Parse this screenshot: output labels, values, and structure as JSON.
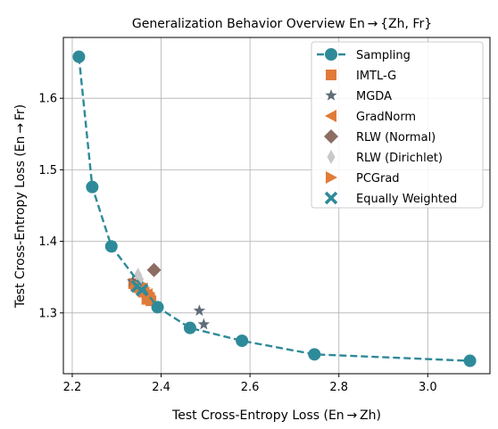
{
  "chart_data": {
    "type": "scatter",
    "title": "Generalization Behavior Overview En → {Zh, Fr}",
    "xlabel": "Test Cross-Entropy Loss (En → Zh)",
    "ylabel": "Test Cross-Entropy Loss (En → Fr)",
    "xlim": [
      2.18,
      3.14
    ],
    "ylim": [
      1.215,
      1.685
    ],
    "xticks": [
      2.2,
      2.4,
      2.6,
      2.8,
      3.0
    ],
    "xtick_labels": [
      "2.2",
      "2.4",
      "2.6",
      "2.8",
      "3.0"
    ],
    "yticks": [
      1.3,
      1.4,
      1.5,
      1.6
    ],
    "ytick_labels": [
      "1.3",
      "1.4",
      "1.5",
      "1.6"
    ],
    "grid": true,
    "legend_position": "top-right",
    "series": [
      {
        "name": "Sampling",
        "marker": "circle",
        "line": "dashed",
        "color": "#2e8a99",
        "points": [
          [
            2.215,
            1.658
          ],
          [
            2.245,
            1.476
          ],
          [
            2.288,
            1.393
          ],
          [
            2.392,
            1.308
          ],
          [
            2.465,
            1.279
          ],
          [
            2.582,
            1.261
          ],
          [
            2.745,
            1.242
          ],
          [
            3.095,
            1.233
          ]
        ]
      },
      {
        "name": "IMTL-G",
        "marker": "square",
        "color": "#e07b39",
        "points": [
          [
            2.338,
            1.341
          ],
          [
            2.353,
            1.335
          ],
          [
            2.362,
            1.329
          ],
          [
            2.372,
            1.322
          ],
          [
            2.377,
            1.317
          ],
          [
            2.368,
            1.319
          ]
        ]
      },
      {
        "name": "MGDA",
        "marker": "star",
        "color": "#5f6d79",
        "points": [
          [
            2.486,
            1.303
          ],
          [
            2.496,
            1.284
          ],
          [
            2.336,
            1.344
          ]
        ]
      },
      {
        "name": "GradNorm",
        "marker": "triangle-left",
        "color": "#e07b39",
        "points": [
          [
            2.358,
            1.334
          ],
          [
            2.369,
            1.326
          ],
          [
            2.347,
            1.338
          ],
          [
            2.374,
            1.32
          ]
        ]
      },
      {
        "name": "RLW (Normal)",
        "marker": "diamond",
        "color": "#8c6d62",
        "points": [
          [
            2.384,
            1.36
          ]
        ]
      },
      {
        "name": "RLW (Dirichlet)",
        "marker": "thin-diamond",
        "color": "#c8c8c8",
        "points": [
          [
            2.348,
            1.353
          ],
          [
            2.352,
            1.347
          ]
        ]
      },
      {
        "name": "PCGrad",
        "marker": "triangle-right",
        "color": "#e07b39",
        "points": [
          [
            2.343,
            1.339
          ],
          [
            2.36,
            1.33
          ],
          [
            2.351,
            1.336
          ]
        ]
      },
      {
        "name": "Equally Weighted",
        "marker": "x",
        "color": "#2e8a99",
        "points": [
          [
            2.346,
            1.337
          ],
          [
            2.357,
            1.332
          ]
        ]
      }
    ]
  }
}
